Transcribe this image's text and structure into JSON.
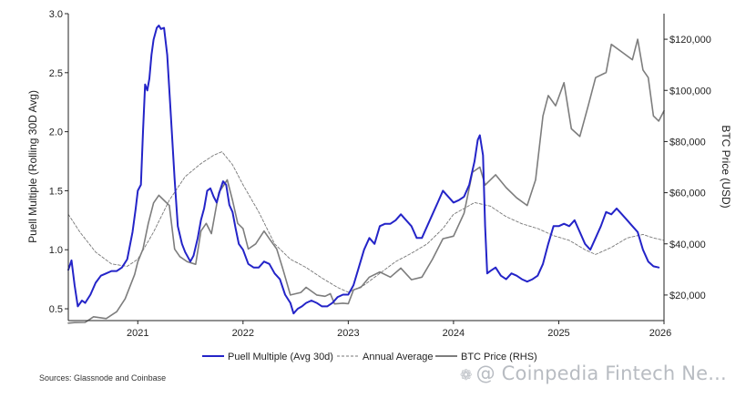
{
  "chart_data": {
    "type": "line",
    "ylabel": "Puell Multiple (Rolling 30D Avg)",
    "y2label": "BTC Price (USD)",
    "ylim": [
      0.4,
      3.0
    ],
    "y2lim": [
      10000,
      130000
    ],
    "xlim": [
      2020.34,
      2026.0
    ],
    "y_ticks": [
      "0.5",
      "1.0",
      "1.5",
      "2.0",
      "2.5",
      "3.0"
    ],
    "y2_ticks": [
      "$20,000",
      "$40,000",
      "$60,000",
      "$80,000",
      "$100,000",
      "$120,000"
    ],
    "x_ticks": [
      "2021",
      "2022",
      "2023",
      "2024",
      "2025",
      "2026"
    ],
    "legend_position": "bottom",
    "grid": false,
    "series": [
      {
        "name": "Puell Multiple (Avg 30d)",
        "axis": "left",
        "color": "#2424c8",
        "style": "solid",
        "points": [
          [
            2020.34,
            0.83
          ],
          [
            2020.37,
            0.91
          ],
          [
            2020.4,
            0.7
          ],
          [
            2020.43,
            0.52
          ],
          [
            2020.47,
            0.57
          ],
          [
            2020.5,
            0.55
          ],
          [
            2020.55,
            0.62
          ],
          [
            2020.6,
            0.72
          ],
          [
            2020.65,
            0.78
          ],
          [
            2020.7,
            0.8
          ],
          [
            2020.75,
            0.82
          ],
          [
            2020.8,
            0.82
          ],
          [
            2020.85,
            0.85
          ],
          [
            2020.9,
            0.92
          ],
          [
            2020.95,
            1.15
          ],
          [
            2020.98,
            1.35
          ],
          [
            2021.0,
            1.5
          ],
          [
            2021.03,
            1.55
          ],
          [
            2021.05,
            2.0
          ],
          [
            2021.07,
            2.4
          ],
          [
            2021.09,
            2.35
          ],
          [
            2021.11,
            2.45
          ],
          [
            2021.13,
            2.65
          ],
          [
            2021.15,
            2.78
          ],
          [
            2021.18,
            2.88
          ],
          [
            2021.2,
            2.9
          ],
          [
            2021.22,
            2.87
          ],
          [
            2021.25,
            2.88
          ],
          [
            2021.28,
            2.65
          ],
          [
            2021.31,
            2.2
          ],
          [
            2021.35,
            1.6
          ],
          [
            2021.38,
            1.2
          ],
          [
            2021.42,
            1.05
          ],
          [
            2021.45,
            0.98
          ],
          [
            2021.5,
            0.9
          ],
          [
            2021.53,
            0.95
          ],
          [
            2021.57,
            1.1
          ],
          [
            2021.6,
            1.25
          ],
          [
            2021.63,
            1.35
          ],
          [
            2021.66,
            1.5
          ],
          [
            2021.69,
            1.52
          ],
          [
            2021.72,
            1.45
          ],
          [
            2021.75,
            1.4
          ],
          [
            2021.78,
            1.5
          ],
          [
            2021.81,
            1.58
          ],
          [
            2021.84,
            1.55
          ],
          [
            2021.87,
            1.38
          ],
          [
            2021.9,
            1.32
          ],
          [
            2021.93,
            1.18
          ],
          [
            2021.96,
            1.05
          ],
          [
            2022.0,
            1.0
          ],
          [
            2022.05,
            0.88
          ],
          [
            2022.1,
            0.85
          ],
          [
            2022.15,
            0.85
          ],
          [
            2022.2,
            0.9
          ],
          [
            2022.25,
            0.88
          ],
          [
            2022.3,
            0.8
          ],
          [
            2022.35,
            0.75
          ],
          [
            2022.4,
            0.62
          ],
          [
            2022.45,
            0.55
          ],
          [
            2022.48,
            0.46
          ],
          [
            2022.52,
            0.5
          ],
          [
            2022.56,
            0.52
          ],
          [
            2022.6,
            0.55
          ],
          [
            2022.65,
            0.57
          ],
          [
            2022.7,
            0.55
          ],
          [
            2022.75,
            0.52
          ],
          [
            2022.8,
            0.52
          ],
          [
            2022.85,
            0.55
          ],
          [
            2022.9,
            0.6
          ],
          [
            2022.95,
            0.62
          ],
          [
            2023.0,
            0.62
          ],
          [
            2023.05,
            0.7
          ],
          [
            2023.1,
            0.85
          ],
          [
            2023.15,
            1.0
          ],
          [
            2023.2,
            1.1
          ],
          [
            2023.25,
            1.05
          ],
          [
            2023.3,
            1.2
          ],
          [
            2023.35,
            1.22
          ],
          [
            2023.4,
            1.22
          ],
          [
            2023.45,
            1.25
          ],
          [
            2023.5,
            1.3
          ],
          [
            2023.55,
            1.25
          ],
          [
            2023.6,
            1.2
          ],
          [
            2023.65,
            1.1
          ],
          [
            2023.7,
            1.1
          ],
          [
            2023.75,
            1.2
          ],
          [
            2023.8,
            1.3
          ],
          [
            2023.85,
            1.4
          ],
          [
            2023.9,
            1.5
          ],
          [
            2023.95,
            1.45
          ],
          [
            2024.0,
            1.4
          ],
          [
            2024.05,
            1.42
          ],
          [
            2024.1,
            1.45
          ],
          [
            2024.15,
            1.55
          ],
          [
            2024.2,
            1.75
          ],
          [
            2024.23,
            1.93
          ],
          [
            2024.25,
            1.97
          ],
          [
            2024.28,
            1.8
          ],
          [
            2024.3,
            1.2
          ],
          [
            2024.32,
            0.8
          ],
          [
            2024.35,
            0.82
          ],
          [
            2024.4,
            0.85
          ],
          [
            2024.45,
            0.78
          ],
          [
            2024.5,
            0.75
          ],
          [
            2024.55,
            0.8
          ],
          [
            2024.6,
            0.78
          ],
          [
            2024.65,
            0.75
          ],
          [
            2024.7,
            0.73
          ],
          [
            2024.75,
            0.75
          ],
          [
            2024.8,
            0.78
          ],
          [
            2024.85,
            0.88
          ],
          [
            2024.9,
            1.05
          ],
          [
            2024.95,
            1.2
          ],
          [
            2025.0,
            1.2
          ],
          [
            2025.05,
            1.22
          ],
          [
            2025.1,
            1.2
          ],
          [
            2025.15,
            1.25
          ],
          [
            2025.2,
            1.15
          ],
          [
            2025.25,
            1.05
          ],
          [
            2025.3,
            1.0
          ],
          [
            2025.35,
            1.1
          ],
          [
            2025.4,
            1.2
          ],
          [
            2025.45,
            1.32
          ],
          [
            2025.5,
            1.3
          ],
          [
            2025.55,
            1.35
          ],
          [
            2025.6,
            1.3
          ],
          [
            2025.65,
            1.25
          ],
          [
            2025.7,
            1.2
          ],
          [
            2025.75,
            1.15
          ],
          [
            2025.8,
            1.0
          ],
          [
            2025.85,
            0.9
          ],
          [
            2025.9,
            0.86
          ],
          [
            2025.95,
            0.85
          ]
        ]
      },
      {
        "name": "Annual Average",
        "axis": "left",
        "color": "#777777",
        "style": "dashed",
        "points": [
          [
            2020.34,
            1.3
          ],
          [
            2020.45,
            1.15
          ],
          [
            2020.6,
            0.98
          ],
          [
            2020.75,
            0.88
          ],
          [
            2020.9,
            0.86
          ],
          [
            2021.0,
            0.92
          ],
          [
            2021.15,
            1.15
          ],
          [
            2021.3,
            1.42
          ],
          [
            2021.45,
            1.62
          ],
          [
            2021.6,
            1.73
          ],
          [
            2021.72,
            1.8
          ],
          [
            2021.8,
            1.83
          ],
          [
            2021.9,
            1.72
          ],
          [
            2022.0,
            1.55
          ],
          [
            2022.15,
            1.32
          ],
          [
            2022.3,
            1.05
          ],
          [
            2022.45,
            0.92
          ],
          [
            2022.6,
            0.85
          ],
          [
            2022.75,
            0.76
          ],
          [
            2022.9,
            0.68
          ],
          [
            2023.0,
            0.64
          ],
          [
            2023.15,
            0.7
          ],
          [
            2023.3,
            0.8
          ],
          [
            2023.45,
            0.9
          ],
          [
            2023.6,
            0.97
          ],
          [
            2023.75,
            1.05
          ],
          [
            2023.9,
            1.18
          ],
          [
            2024.0,
            1.3
          ],
          [
            2024.1,
            1.35
          ],
          [
            2024.2,
            1.4
          ],
          [
            2024.35,
            1.37
          ],
          [
            2024.5,
            1.28
          ],
          [
            2024.65,
            1.22
          ],
          [
            2024.8,
            1.18
          ],
          [
            2024.95,
            1.12
          ],
          [
            2025.1,
            1.08
          ],
          [
            2025.25,
            1.0
          ],
          [
            2025.35,
            0.96
          ],
          [
            2025.5,
            1.02
          ],
          [
            2025.65,
            1.1
          ],
          [
            2025.8,
            1.13
          ],
          [
            2025.9,
            1.1
          ],
          [
            2026.0,
            1.08
          ]
        ]
      },
      {
        "name": "BTC Price (RHS)",
        "axis": "right",
        "color": "#7d7d7d",
        "style": "solid",
        "points": [
          [
            2020.34,
            9000
          ],
          [
            2020.4,
            9200
          ],
          [
            2020.5,
            9300
          ],
          [
            2020.58,
            11500
          ],
          [
            2020.7,
            10800
          ],
          [
            2020.8,
            13500
          ],
          [
            2020.88,
            18500
          ],
          [
            2020.97,
            28000
          ],
          [
            2021.0,
            33000
          ],
          [
            2021.05,
            38000
          ],
          [
            2021.1,
            48000
          ],
          [
            2021.15,
            56000
          ],
          [
            2021.2,
            59000
          ],
          [
            2021.25,
            57000
          ],
          [
            2021.3,
            55000
          ],
          [
            2021.35,
            38000
          ],
          [
            2021.4,
            35000
          ],
          [
            2021.47,
            33000
          ],
          [
            2021.55,
            32000
          ],
          [
            2021.6,
            45000
          ],
          [
            2021.65,
            48000
          ],
          [
            2021.7,
            44000
          ],
          [
            2021.77,
            60000
          ],
          [
            2021.85,
            65000
          ],
          [
            2021.9,
            57000
          ],
          [
            2021.95,
            48000
          ],
          [
            2022.0,
            46000
          ],
          [
            2022.05,
            38000
          ],
          [
            2022.12,
            40000
          ],
          [
            2022.2,
            45000
          ],
          [
            2022.25,
            42000
          ],
          [
            2022.32,
            38000
          ],
          [
            2022.38,
            30000
          ],
          [
            2022.45,
            20000
          ],
          [
            2022.55,
            21000
          ],
          [
            2022.6,
            23000
          ],
          [
            2022.7,
            20000
          ],
          [
            2022.78,
            19500
          ],
          [
            2022.83,
            20500
          ],
          [
            2022.87,
            16500
          ],
          [
            2022.95,
            16800
          ],
          [
            2023.0,
            16600
          ],
          [
            2023.05,
            22000
          ],
          [
            2023.12,
            23000
          ],
          [
            2023.2,
            27000
          ],
          [
            2023.3,
            29000
          ],
          [
            2023.4,
            27000
          ],
          [
            2023.5,
            30500
          ],
          [
            2023.6,
            26000
          ],
          [
            2023.7,
            27000
          ],
          [
            2023.8,
            34000
          ],
          [
            2023.9,
            42000
          ],
          [
            2024.0,
            43000
          ],
          [
            2024.1,
            52000
          ],
          [
            2024.18,
            68000
          ],
          [
            2024.25,
            70000
          ],
          [
            2024.3,
            63000
          ],
          [
            2024.4,
            67000
          ],
          [
            2024.5,
            62000
          ],
          [
            2024.6,
            58000
          ],
          [
            2024.7,
            55000
          ],
          [
            2024.78,
            65000
          ],
          [
            2024.85,
            90000
          ],
          [
            2024.9,
            98000
          ],
          [
            2024.97,
            94000
          ],
          [
            2025.05,
            103000
          ],
          [
            2025.12,
            85000
          ],
          [
            2025.2,
            82000
          ],
          [
            2025.28,
            94000
          ],
          [
            2025.35,
            105000
          ],
          [
            2025.45,
            107000
          ],
          [
            2025.5,
            118000
          ],
          [
            2025.6,
            115000
          ],
          [
            2025.7,
            112000
          ],
          [
            2025.75,
            120000
          ],
          [
            2025.8,
            108000
          ],
          [
            2025.85,
            105000
          ],
          [
            2025.9,
            90000
          ],
          [
            2025.95,
            88000
          ],
          [
            2026.0,
            92000
          ]
        ]
      }
    ]
  },
  "source_text": "Sources: Glassnode and Coinbase",
  "watermark": {
    "icon": "coinpedia-logo-icon",
    "text": "@ Coinpedia Fintech Ne..."
  }
}
